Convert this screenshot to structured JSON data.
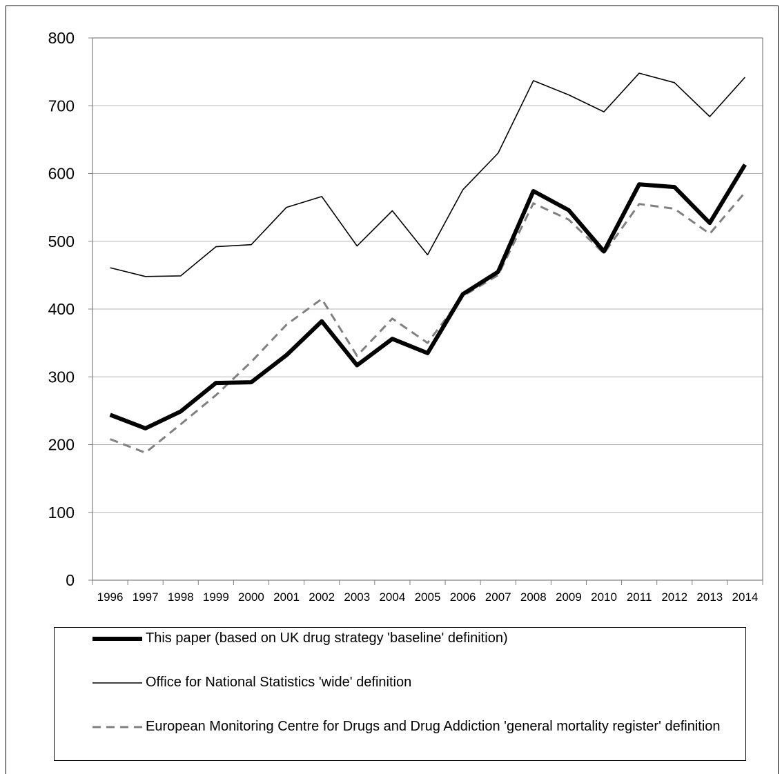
{
  "chart_data": {
    "type": "line",
    "x": [
      "1996",
      "1997",
      "1998",
      "1999",
      "2000",
      "2001",
      "2002",
      "2003",
      "2004",
      "2005",
      "2006",
      "2007",
      "2008",
      "2009",
      "2010",
      "2011",
      "2012",
      "2013",
      "2014"
    ],
    "ylim": [
      0,
      800
    ],
    "yticks": [
      "0",
      "100",
      "200",
      "300",
      "400",
      "500",
      "600",
      "700",
      "800"
    ],
    "grid": true,
    "legend_position": "bottom",
    "series": [
      {
        "name": "This paper (based on UK drug strategy 'baseline' definition)",
        "style": "thick-solid",
        "color": "#000000",
        "values": [
          244,
          224,
          249,
          291,
          292,
          332,
          382,
          317,
          356,
          335,
          422,
          455,
          574,
          546,
          485,
          584,
          580,
          527,
          613
        ]
      },
      {
        "name": "Office for National Statistics 'wide' definition",
        "style": "thin-solid",
        "color": "#000000",
        "values": [
          461,
          448,
          449,
          492,
          495,
          550,
          566,
          493,
          545,
          480,
          576,
          630,
          737,
          716,
          691,
          748,
          734,
          684,
          742
        ]
      },
      {
        "name": "European Monitoring Centre for Drugs and Drug Addiction 'general mortality register' definition",
        "style": "dashed",
        "color": "#808080",
        "values": [
          208,
          188,
          230,
          273,
          322,
          377,
          415,
          331,
          386,
          350,
          419,
          450,
          556,
          532,
          482,
          555,
          548,
          511,
          572
        ]
      }
    ]
  }
}
